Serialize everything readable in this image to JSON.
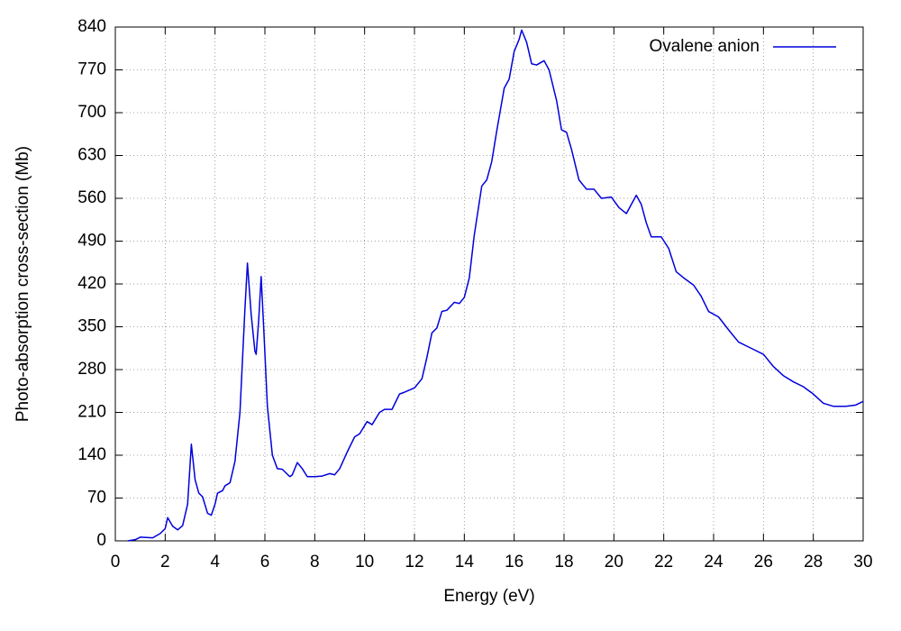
{
  "chart_data": {
    "type": "line",
    "xlabel": "Energy (eV)",
    "ylabel": "Photo-absorption cross-section (Mb)",
    "xlim": [
      0,
      30
    ],
    "ylim": [
      0,
      840
    ],
    "xticks": [
      0,
      2,
      4,
      6,
      8,
      10,
      12,
      14,
      16,
      18,
      20,
      22,
      24,
      26,
      28,
      30
    ],
    "yticks": [
      0,
      70,
      140,
      210,
      280,
      350,
      420,
      490,
      560,
      630,
      700,
      770,
      840
    ],
    "grid": true,
    "legend": "upper right",
    "x": [
      0.5,
      0.8,
      1.0,
      1.5,
      1.8,
      2.0,
      2.1,
      2.3,
      2.5,
      2.7,
      2.9,
      3.05,
      3.2,
      3.35,
      3.5,
      3.7,
      3.85,
      4.0,
      4.1,
      4.3,
      4.4,
      4.6,
      4.8,
      5.0,
      5.2,
      5.3,
      5.45,
      5.6,
      5.65,
      5.75,
      5.85,
      5.95,
      6.1,
      6.3,
      6.5,
      6.7,
      7.0,
      7.1,
      7.3,
      7.5,
      7.7,
      8.0,
      8.3,
      8.6,
      8.8,
      9.0,
      9.3,
      9.6,
      9.8,
      10.1,
      10.3,
      10.6,
      10.8,
      11.1,
      11.4,
      11.6,
      12.0,
      12.3,
      12.5,
      12.7,
      12.9,
      13.1,
      13.3,
      13.6,
      13.8,
      14.0,
      14.2,
      14.4,
      14.7,
      14.9,
      15.1,
      15.3,
      15.6,
      15.8,
      16.0,
      16.2,
      16.3,
      16.5,
      16.7,
      16.9,
      17.2,
      17.4,
      17.7,
      17.9,
      18.1,
      18.3,
      18.6,
      18.9,
      19.2,
      19.5,
      19.9,
      20.2,
      20.5,
      20.7,
      20.9,
      21.1,
      21.3,
      21.5,
      21.9,
      22.2,
      22.5,
      22.8,
      23.2,
      23.5,
      23.8,
      24.2,
      24.6,
      25.0,
      25.5,
      26.0,
      26.4,
      26.8,
      27.2,
      27.6,
      28.0,
      28.4,
      28.8,
      29.3,
      29.7,
      30
    ],
    "series": [
      {
        "name": "Ovalene anion",
        "color": "#0000dd",
        "values": [
          0,
          2,
          6,
          5,
          12,
          20,
          38,
          24,
          18,
          25,
          60,
          158,
          100,
          78,
          72,
          45,
          42,
          60,
          78,
          82,
          90,
          95,
          130,
          210,
          380,
          454,
          370,
          310,
          305,
          360,
          432,
          350,
          220,
          140,
          118,
          117,
          105,
          108,
          128,
          118,
          105,
          105,
          106,
          110,
          108,
          118,
          145,
          170,
          175,
          195,
          190,
          210,
          215,
          215,
          240,
          243,
          250,
          265,
          300,
          340,
          348,
          375,
          377,
          390,
          388,
          398,
          430,
          500,
          580,
          590,
          620,
          670,
          740,
          755,
          800,
          820,
          835,
          815,
          780,
          778,
          785,
          770,
          720,
          672,
          668,
          640,
          590,
          575,
          575,
          560,
          562,
          545,
          535,
          550,
          565,
          550,
          520,
          497,
          497,
          478,
          440,
          430,
          418,
          400,
          375,
          366,
          345,
          325,
          315,
          305,
          285,
          270,
          260,
          252,
          240,
          225,
          220,
          220,
          222,
          228
        ]
      }
    ]
  }
}
